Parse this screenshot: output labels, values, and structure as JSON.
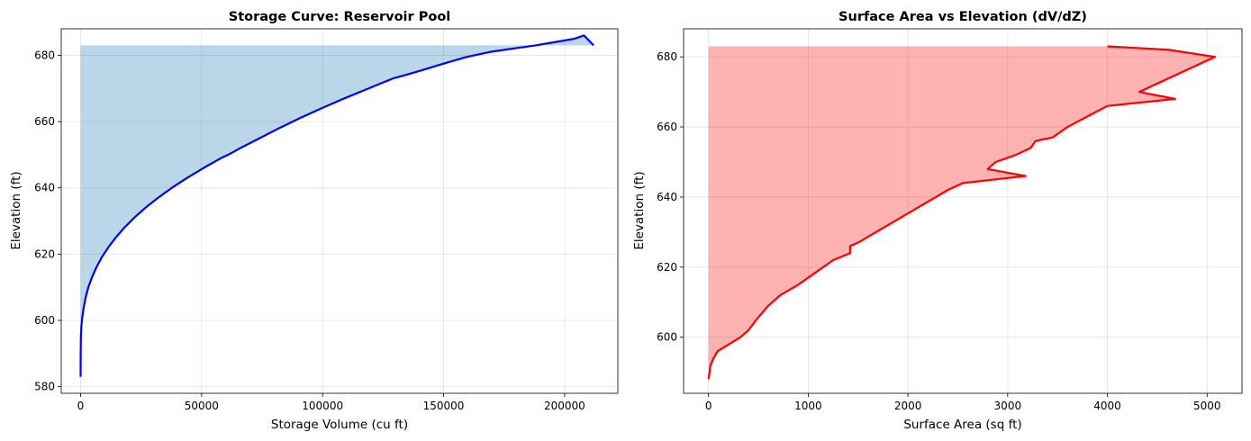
{
  "chart_data": [
    {
      "type": "area",
      "title": "Storage Curve: Reservoir Pool",
      "xlabel": "Storage Volume (cu ft)",
      "ylabel": "Elevation (ft)",
      "xlim": [
        -8000,
        222000
      ],
      "ylim": [
        578,
        688
      ],
      "xticks": [
        0,
        50000,
        100000,
        150000,
        200000
      ],
      "yticks": [
        580,
        600,
        620,
        640,
        660,
        680
      ],
      "grid": true,
      "line_color": "#0000ff",
      "fill_color": "#1f77b4",
      "fill_opacity": 0.3,
      "fill_to_x": 0,
      "fill_top_y": 683,
      "series": [
        {
          "x": [
            0,
            30,
            120,
            300,
            700,
            1300,
            2100,
            3200,
            4700,
            6500,
            8700,
            11400,
            14500,
            18100,
            22200,
            26800,
            32000,
            37700,
            44000,
            50800,
            58100,
            61000,
            66000,
            74000,
            82000,
            90500,
            99500,
            109000,
            119000,
            129000,
            134000,
            141000,
            150000,
            159500,
            169000,
            178500,
            188000,
            196000,
            204000,
            208000,
            212000
          ],
          "y": [
            583,
            590,
            595,
            598,
            601,
            604,
            607,
            610,
            613,
            616,
            619,
            622,
            625,
            628,
            631,
            634,
            637,
            640,
            643,
            646,
            649,
            650,
            652,
            655,
            658,
            661,
            664,
            667,
            670,
            673,
            674,
            675.5,
            677.5,
            679.5,
            681,
            682,
            683,
            684,
            685,
            686,
            683
          ]
        }
      ]
    },
    {
      "type": "area",
      "title": "Surface Area vs Elevation (dV/dZ)",
      "xlabel": "Surface Area (sq ft)",
      "ylabel": "Elevation (ft)",
      "xlim": [
        -250,
        5350
      ],
      "ylim": [
        584,
        688
      ],
      "xticks": [
        0,
        1000,
        2000,
        3000,
        4000,
        5000
      ],
      "yticks": [
        600,
        620,
        640,
        660,
        680
      ],
      "grid": true,
      "line_color": "#ff0000",
      "fill_color": "#ff0000",
      "fill_opacity": 0.3,
      "fill_to_x": 0,
      "fill_top_y": 683,
      "series": [
        {
          "x": [
            0,
            20,
            50,
            90,
            320,
            400,
            480,
            600,
            720,
            900,
            1100,
            1250,
            1420,
            1420,
            1500,
            1800,
            2100,
            2400,
            2550,
            3180,
            2800,
            2880,
            3080,
            3230,
            3280,
            3450,
            3600,
            4000,
            4680,
            4320,
            5080,
            4620,
            4000
          ],
          "y": [
            588,
            592,
            594,
            596,
            600,
            602,
            605,
            609,
            612,
            615,
            619,
            622,
            624,
            626,
            627,
            632,
            637,
            642,
            644,
            646,
            648,
            650,
            652,
            654,
            656,
            657,
            660,
            666,
            668,
            670,
            680,
            682,
            683
          ]
        }
      ]
    }
  ]
}
